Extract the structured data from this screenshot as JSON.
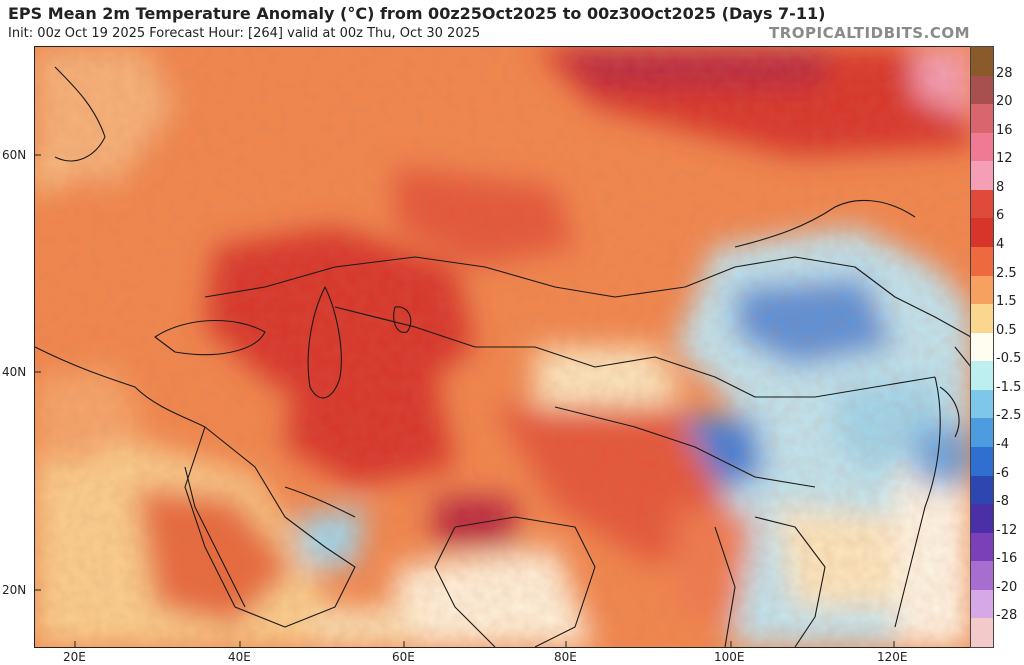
{
  "header": {
    "title": "EPS Mean 2m Temperature Anomaly (°C) from 00z25Oct2025 to 00z30Oct2025 (Days 7-11)",
    "subtitle": "Init: 00z Oct 19 2025   Forecast Hour: [264]   valid at 00z Thu, Oct 30 2025",
    "brand": "TROPICALTIDBITS.COM"
  },
  "map": {
    "lat_labels": [
      "60N",
      "40N",
      "20N"
    ],
    "lon_labels": [
      "20E",
      "40E",
      "60E",
      "80E",
      "100E",
      "120E"
    ]
  },
  "colorbar": {
    "labels": [
      "28",
      "20",
      "16",
      "12",
      "8",
      "6",
      "4",
      "2.5",
      "1.5",
      "0.5",
      "-0.5",
      "-1.5",
      "-2.5",
      "-4",
      "-6",
      "-8",
      "-12",
      "-16",
      "-20",
      "-28"
    ],
    "colors": [
      "#8b5a2b",
      "#a8504f",
      "#d9666e",
      "#f07a93",
      "#f59fb6",
      "#e04a3a",
      "#d7352a",
      "#ee6a3e",
      "#f7a160",
      "#fbd68e",
      "#fffdf0",
      "#bdeef0",
      "#7fc7ea",
      "#4d9ce0",
      "#2e6fd0",
      "#2d46b0",
      "#4a2fa6",
      "#7b3fb8",
      "#a76ed0",
      "#d6a9e6",
      "#f3c9c9"
    ]
  },
  "map_colors": {
    "hot_base": "#f2874e",
    "very_hot": "#d8362c",
    "extreme": "#b8283f",
    "warm": "#f9c88a",
    "mild": "#fde8c0",
    "neutral": "#fff8e8",
    "cool": "#9fd8f0",
    "cold": "#3f7fd8",
    "border": "#1a1a1a"
  }
}
